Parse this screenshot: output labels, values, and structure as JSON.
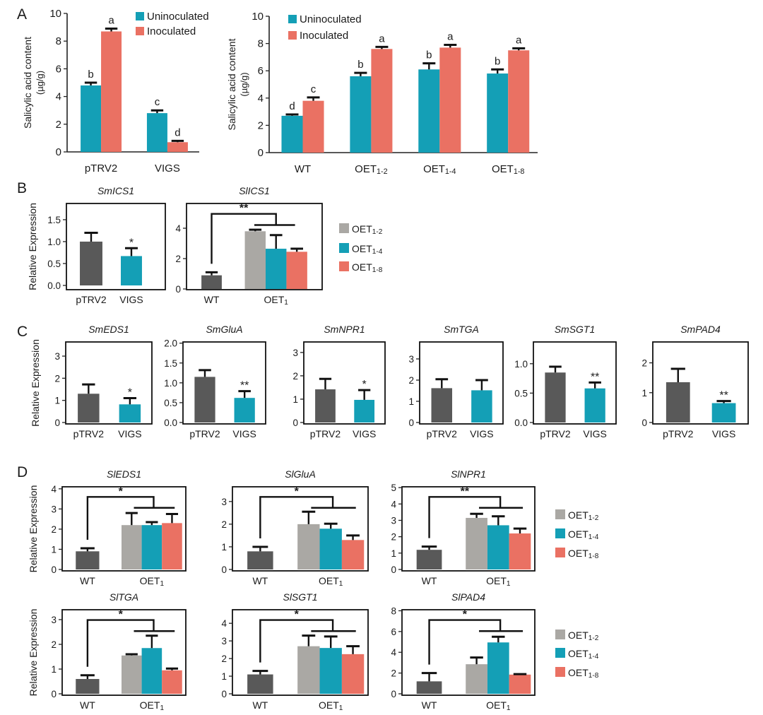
{
  "panels": [
    "A",
    "B",
    "C",
    "D"
  ],
  "colors": {
    "Uninoculated": "#149fb6",
    "Inoculated": "#ea7163",
    "pTRV2": "#595959",
    "VIGS": "#149fb6",
    "WT": "#595959",
    "OET1-2": "#aaa8a4",
    "OET1-4": "#149fb6",
    "OET1-8": "#ea7163"
  },
  "chart_data": [
    {
      "panel": "A",
      "type": "bar",
      "title": "",
      "ylabel": "Salicylic acid content",
      "yunit": "(µg/g)",
      "ylim": [
        0,
        10
      ],
      "yticks": [
        "0",
        "2",
        "4",
        "6",
        "8",
        "10"
      ],
      "categories": [
        "pTRV2",
        "VIGS"
      ],
      "legend": [
        "Uninoculated",
        "Inoculated"
      ],
      "series": [
        {
          "name": "Uninoculated",
          "values": [
            4.8,
            2.8
          ],
          "errors": [
            0.2,
            0.2
          ],
          "letters": [
            "b",
            "c"
          ]
        },
        {
          "name": "Inoculated",
          "values": [
            8.7,
            0.7
          ],
          "errors": [
            0.2,
            0.1
          ],
          "letters": [
            "a",
            "d"
          ]
        }
      ]
    },
    {
      "panel": "A",
      "type": "bar",
      "title": "",
      "ylabel": "Salicylic acid content",
      "yunit": "(µg/g)",
      "ylim": [
        0,
        10
      ],
      "yticks": [
        "0",
        "2",
        "4",
        "6",
        "8",
        "10"
      ],
      "categories": [
        "WT",
        "OET1-2",
        "OET1-4",
        "OET1-8"
      ],
      "legend": [
        "Uninoculated",
        "Inoculated"
      ],
      "series": [
        {
          "name": "Uninoculated",
          "values": [
            2.7,
            5.6,
            6.1,
            5.8
          ],
          "errors": [
            0.1,
            0.25,
            0.45,
            0.3
          ],
          "letters": [
            "d",
            "b",
            "b",
            "b"
          ]
        },
        {
          "name": "Inoculated",
          "values": [
            3.8,
            7.6,
            7.7,
            7.5
          ],
          "errors": [
            0.25,
            0.15,
            0.2,
            0.15
          ],
          "letters": [
            "c",
            "a",
            "a",
            "a"
          ]
        }
      ]
    },
    {
      "panel": "B",
      "type": "bar",
      "title": "SmICS1",
      "ylabel": "Relative Expression",
      "ylim": [
        0,
        1.87
      ],
      "yticks": [
        "0.0",
        "0.5",
        "1.0",
        "1.5"
      ],
      "categories": [
        "pTRV2",
        "VIGS"
      ],
      "bars": [
        {
          "category": "pTRV2",
          "value": 1.0,
          "error": 0.2
        },
        {
          "category": "VIGS",
          "value": 0.67,
          "error": 0.18,
          "sig": "*"
        }
      ]
    },
    {
      "panel": "B",
      "type": "bar",
      "title": "SlICS1",
      "ylim": [
        0,
        5.63
      ],
      "yticks": [
        "0",
        "2",
        "4"
      ],
      "categories": [
        "WT",
        "OET1"
      ],
      "bars": [
        {
          "category": "WT",
          "value": 0.9,
          "error": 0.2
        },
        {
          "category": "OET1",
          "series": "OET1-2",
          "value": 3.8,
          "error": 0.1
        },
        {
          "category": "OET1",
          "series": "OET1-4",
          "value": 2.65,
          "error": 0.9
        },
        {
          "category": "OET1",
          "series": "OET1-8",
          "value": 2.45,
          "error": 0.2
        }
      ],
      "bracket_sig": "**",
      "legend": [
        "OET1-2",
        "OET1-4",
        "OET1-8"
      ]
    },
    {
      "panel": "C",
      "type": "bar",
      "title": "SmEDS1",
      "ylabel": "Relative Expression",
      "ylim": [
        0,
        3.64
      ],
      "yticks": [
        "0",
        "1",
        "2",
        "3"
      ],
      "categories": [
        "pTRV2",
        "VIGS"
      ],
      "bars": [
        {
          "category": "pTRV2",
          "value": 1.3,
          "error": 0.42
        },
        {
          "category": "VIGS",
          "value": 0.82,
          "error": 0.28,
          "sig": "*"
        }
      ]
    },
    {
      "panel": "C",
      "type": "bar",
      "title": "SmGluA",
      "ylim": [
        0,
        2.03
      ],
      "yticks": [
        "0.0",
        "0.5",
        "1.0",
        "1.5",
        "2.0"
      ],
      "categories": [
        "pTRV2",
        "VIGS"
      ],
      "bars": [
        {
          "category": "pTRV2",
          "value": 1.15,
          "error": 0.17
        },
        {
          "category": "VIGS",
          "value": 0.62,
          "error": 0.17,
          "sig": "**"
        }
      ]
    },
    {
      "panel": "C",
      "type": "bar",
      "title": "SmNPR1",
      "ylim": [
        0,
        3.45
      ],
      "yticks": [
        "0",
        "1",
        "2",
        "3"
      ],
      "categories": [
        "pTRV2",
        "VIGS"
      ],
      "bars": [
        {
          "category": "pTRV2",
          "value": 1.42,
          "error": 0.45
        },
        {
          "category": "VIGS",
          "value": 0.97,
          "error": 0.42,
          "sig": "*"
        }
      ]
    },
    {
      "panel": "C",
      "type": "bar",
      "title": "SmTGA",
      "ylim": [
        0,
        3.8
      ],
      "yticks": [
        "0",
        "1",
        "2",
        "3"
      ],
      "categories": [
        "pTRV2",
        "VIGS"
      ],
      "bars": [
        {
          "category": "pTRV2",
          "value": 1.62,
          "error": 0.42
        },
        {
          "category": "VIGS",
          "value": 1.52,
          "error": 0.48
        }
      ]
    },
    {
      "panel": "C",
      "type": "bar",
      "title": "SmSGT1",
      "ylim": [
        0,
        1.37
      ],
      "yticks": [
        "0.0",
        "0.5",
        "1.0"
      ],
      "categories": [
        "pTRV2",
        "VIGS"
      ],
      "bars": [
        {
          "category": "pTRV2",
          "value": 0.85,
          "error": 0.1
        },
        {
          "category": "VIGS",
          "value": 0.58,
          "error": 0.1,
          "sig": "**"
        }
      ]
    },
    {
      "panel": "C",
      "type": "bar",
      "title": "SmPAD4",
      "ylim": [
        0,
        2.7
      ],
      "yticks": [
        "0",
        "1",
        "2"
      ],
      "categories": [
        "pTRV2",
        "VIGS"
      ],
      "bars": [
        {
          "category": "pTRV2",
          "value": 1.35,
          "error": 0.45
        },
        {
          "category": "VIGS",
          "value": 0.65,
          "error": 0.07,
          "sig": "**"
        }
      ]
    },
    {
      "panel": "D",
      "type": "bar",
      "title": "SlEDS1",
      "ylabel": "Relative Expression",
      "ylim": [
        0,
        4.1
      ],
      "yticks": [
        "0",
        "1",
        "2",
        "3",
        "4"
      ],
      "categories": [
        "WT",
        "OET1"
      ],
      "bars": [
        {
          "category": "WT",
          "value": 0.9,
          "error": 0.15
        },
        {
          "category": "OET1",
          "series": "OET1-2",
          "value": 2.2,
          "error": 0.6
        },
        {
          "category": "OET1",
          "series": "OET1-4",
          "value": 2.2,
          "error": 0.15
        },
        {
          "category": "OET1",
          "series": "OET1-8",
          "value": 2.3,
          "error": 0.45
        }
      ],
      "bracket_sig": "*"
    },
    {
      "panel": "D",
      "type": "bar",
      "title": "SlGluA",
      "ylim": [
        0,
        3.65
      ],
      "yticks": [
        "0",
        "1",
        "2",
        "3"
      ],
      "categories": [
        "WT",
        "OET1"
      ],
      "bars": [
        {
          "category": "WT",
          "value": 0.8,
          "error": 0.2
        },
        {
          "category": "OET1",
          "series": "OET1-2",
          "value": 2.0,
          "error": 0.55
        },
        {
          "category": "OET1",
          "series": "OET1-4",
          "value": 1.8,
          "error": 0.22
        },
        {
          "category": "OET1",
          "series": "OET1-8",
          "value": 1.3,
          "error": 0.2
        }
      ],
      "bracket_sig": "*"
    },
    {
      "panel": "D",
      "type": "bar",
      "title": "SlNPR1",
      "ylim": [
        0,
        5.05
      ],
      "yticks": [
        "0",
        "1",
        "2",
        "3",
        "4",
        "5"
      ],
      "categories": [
        "WT",
        "OET1"
      ],
      "bars": [
        {
          "category": "WT",
          "value": 1.2,
          "error": 0.2
        },
        {
          "category": "OET1",
          "series": "OET1-2",
          "value": 3.15,
          "error": 0.25
        },
        {
          "category": "OET1",
          "series": "OET1-4",
          "value": 2.7,
          "error": 0.55
        },
        {
          "category": "OET1",
          "series": "OET1-8",
          "value": 2.2,
          "error": 0.3
        }
      ],
      "bracket_sig": "**",
      "legend": [
        "OET1-2",
        "OET1-4",
        "OET1-8"
      ]
    },
    {
      "panel": "D",
      "type": "bar",
      "title": "SlTGA",
      "ylabel": "Relative Expression",
      "ylim": [
        0,
        3.4
      ],
      "yticks": [
        "0",
        "1",
        "2",
        "3"
      ],
      "categories": [
        "WT",
        "OET1"
      ],
      "bars": [
        {
          "category": "WT",
          "value": 0.6,
          "error": 0.15
        },
        {
          "category": "OET1",
          "series": "OET1-2",
          "value": 1.55,
          "error": 0.05
        },
        {
          "category": "OET1",
          "series": "OET1-4",
          "value": 1.85,
          "error": 0.5
        },
        {
          "category": "OET1",
          "series": "OET1-8",
          "value": 0.95,
          "error": 0.07
        }
      ],
      "bracket_sig": "*"
    },
    {
      "panel": "D",
      "type": "bar",
      "title": "SlSGT1",
      "ylim": [
        0,
        4.77
      ],
      "yticks": [
        "0",
        "1",
        "2",
        "3",
        "4"
      ],
      "categories": [
        "WT",
        "OET1"
      ],
      "bars": [
        {
          "category": "WT",
          "value": 1.1,
          "error": 0.2
        },
        {
          "category": "OET1",
          "series": "OET1-2",
          "value": 2.7,
          "error": 0.6
        },
        {
          "category": "OET1",
          "series": "OET1-4",
          "value": 2.6,
          "error": 0.65
        },
        {
          "category": "OET1",
          "series": "OET1-8",
          "value": 2.25,
          "error": 0.45
        }
      ],
      "bracket_sig": "*"
    },
    {
      "panel": "D",
      "type": "bar",
      "title": "SlPAD4",
      "ylim": [
        0,
        8.1
      ],
      "yticks": [
        "0",
        "2",
        "4",
        "6",
        "8"
      ],
      "categories": [
        "WT",
        "OET1"
      ],
      "bars": [
        {
          "category": "WT",
          "value": 1.2,
          "error": 0.8
        },
        {
          "category": "OET1",
          "series": "OET1-2",
          "value": 2.85,
          "error": 0.65
        },
        {
          "category": "OET1",
          "series": "OET1-4",
          "value": 4.95,
          "error": 0.55
        },
        {
          "category": "OET1",
          "series": "OET1-8",
          "value": 1.85,
          "error": 0.05
        }
      ],
      "bracket_sig": "*",
      "legend": [
        "OET1-2",
        "OET1-4",
        "OET1-8"
      ]
    }
  ]
}
